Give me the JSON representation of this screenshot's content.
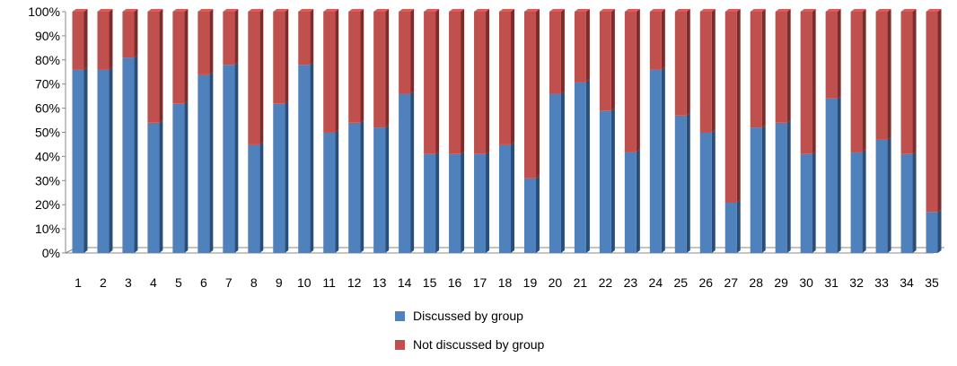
{
  "chart_data": {
    "type": "bar",
    "stacked": true,
    "percent_stacked": true,
    "categories": [
      "1",
      "2",
      "3",
      "4",
      "5",
      "6",
      "7",
      "8",
      "9",
      "10",
      "11",
      "12",
      "13",
      "14",
      "15",
      "16",
      "17",
      "18",
      "19",
      "20",
      "21",
      "22",
      "23",
      "24",
      "25",
      "26",
      "27",
      "28",
      "29",
      "30",
      "31",
      "32",
      "33",
      "34",
      "35"
    ],
    "series": [
      {
        "name": "Discussed by group",
        "color": "#4f81bd",
        "values": [
          76,
          76,
          81,
          54,
          62,
          74,
          78,
          45,
          62,
          78,
          50,
          54,
          52,
          66,
          41,
          41,
          41,
          45,
          31,
          66,
          71,
          59,
          42,
          76,
          57,
          50,
          21,
          52,
          54,
          41,
          64,
          42,
          47,
          41,
          17
        ]
      },
      {
        "name": "Not discussed by group",
        "color": "#c0504d",
        "values": [
          24,
          24,
          19,
          46,
          38,
          26,
          22,
          55,
          38,
          22,
          50,
          46,
          48,
          34,
          59,
          59,
          59,
          55,
          69,
          34,
          29,
          41,
          58,
          24,
          43,
          50,
          79,
          48,
          46,
          59,
          36,
          58,
          53,
          59,
          83
        ]
      }
    ],
    "ylim": [
      0,
      100
    ],
    "yticks": [
      "0%",
      "10%",
      "20%",
      "30%",
      "40%",
      "50%",
      "60%",
      "70%",
      "80%",
      "90%",
      "100%"
    ],
    "xlabel": "",
    "ylabel": "",
    "grid": false,
    "legend_position": "bottom"
  }
}
